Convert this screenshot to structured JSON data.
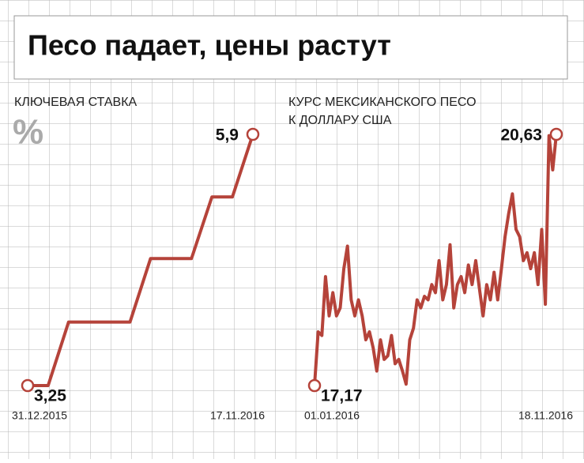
{
  "title": "Песо падает, цены растут",
  "chart_data": [
    {
      "type": "line",
      "title": [
        "КЛЮЧЕВАЯ СТАВКА"
      ],
      "unit": "%",
      "color": "#b5433a",
      "categories": [
        "31.12.2015",
        null,
        null,
        null,
        null,
        null,
        null,
        null,
        null,
        null,
        null,
        "17.11.2016"
      ],
      "values": [
        3.25,
        3.25,
        3.92,
        3.92,
        3.92,
        3.92,
        4.59,
        4.59,
        4.59,
        5.24,
        5.24,
        5.9
      ],
      "value_labels": [
        "3,25",
        null,
        null,
        null,
        null,
        null,
        null,
        null,
        null,
        null,
        null,
        "5,9"
      ]
    },
    {
      "type": "line",
      "title": [
        "КУРС МЕКСИКАНСКОГО ПЕСО",
        "К ДОЛЛАРУ США"
      ],
      "color": "#b5433a",
      "categories": [
        "01.01.2016",
        null,
        null,
        null,
        null,
        null,
        null,
        null,
        null,
        null,
        null,
        null,
        null,
        null,
        null,
        null,
        null,
        null,
        null,
        null,
        null,
        null,
        null,
        null,
        null,
        null,
        null,
        null,
        null,
        null,
        null,
        null,
        null,
        null,
        null,
        null,
        null,
        null,
        null,
        null,
        null,
        null,
        null,
        null,
        null,
        null,
        null,
        null,
        null,
        null,
        null,
        null,
        null,
        null,
        null,
        null,
        null,
        null,
        null,
        null,
        null,
        null,
        null,
        null,
        null,
        null,
        "18.11.2016"
      ],
      "values": [
        17.17,
        17.91,
        17.86,
        18.67,
        18.13,
        18.45,
        18.13,
        18.24,
        18.78,
        19.09,
        18.35,
        18.13,
        18.35,
        18.13,
        17.8,
        17.91,
        17.69,
        17.37,
        17.8,
        17.53,
        17.58,
        17.86,
        17.47,
        17.53,
        17.37,
        17.19,
        17.8,
        17.96,
        18.35,
        18.24,
        18.4,
        18.35,
        18.56,
        18.45,
        18.89,
        18.35,
        18.56,
        19.11,
        18.24,
        18.56,
        18.67,
        18.45,
        18.83,
        18.56,
        18.89,
        18.51,
        18.13,
        18.56,
        18.35,
        18.73,
        18.35,
        18.78,
        19.22,
        19.54,
        19.81,
        19.32,
        19.22,
        18.89,
        19.0,
        18.78,
        19.0,
        18.56,
        19.32,
        18.29,
        20.61,
        20.14,
        20.63
      ],
      "value_labels": [
        "17,17",
        null,
        null,
        null,
        null,
        null,
        null,
        null,
        null,
        null,
        null,
        null,
        null,
        null,
        null,
        null,
        null,
        null,
        null,
        null,
        null,
        null,
        null,
        null,
        null,
        null,
        null,
        null,
        null,
        null,
        null,
        null,
        null,
        null,
        null,
        null,
        null,
        null,
        null,
        null,
        null,
        null,
        null,
        null,
        null,
        null,
        null,
        null,
        null,
        null,
        null,
        null,
        null,
        null,
        null,
        null,
        null,
        null,
        null,
        null,
        null,
        null,
        null,
        null,
        null,
        null,
        "20,63"
      ]
    }
  ]
}
